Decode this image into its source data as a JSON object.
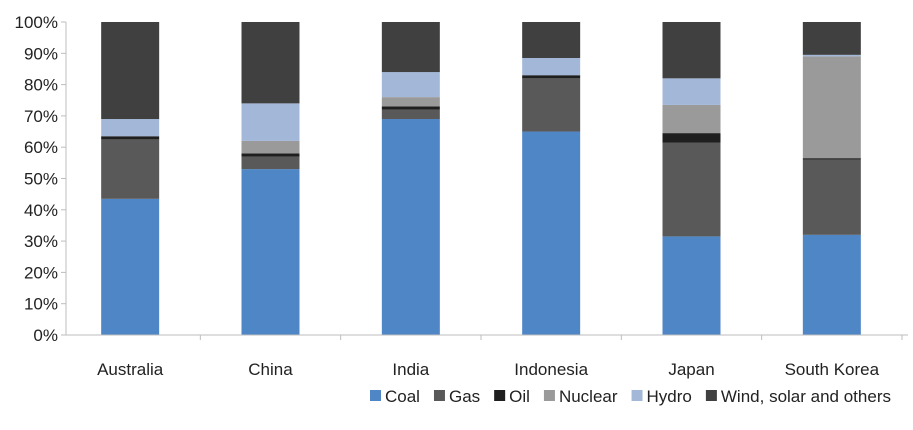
{
  "chart_data": {
    "type": "bar",
    "stacked": true,
    "categories": [
      "Australia",
      "China",
      "India",
      "Indonesia",
      "Japan",
      "South Korea"
    ],
    "series": [
      {
        "name": "Coal",
        "color": "#4f86c6",
        "values": [
          43.5,
          53,
          69,
          65,
          31.5,
          32
        ]
      },
      {
        "name": "Gas",
        "color": "#595959",
        "values": [
          19,
          4,
          3,
          17,
          30,
          24
        ]
      },
      {
        "name": "Oil",
        "color": "#1f1f1f",
        "values": [
          1,
          1,
          1,
          1,
          3,
          0.5
        ]
      },
      {
        "name": "Nuclear",
        "color": "#9a9a9a",
        "values": [
          0,
          4,
          3,
          0,
          9,
          32.5
        ]
      },
      {
        "name": "Hydro",
        "color": "#a3b8d8",
        "values": [
          5.5,
          12,
          8,
          5.5,
          8.5,
          0.5
        ]
      },
      {
        "name": "Wind, solar and others",
        "color": "#404040",
        "values": [
          31,
          26,
          16,
          11.5,
          18,
          10.5
        ]
      }
    ],
    "yticks": [
      "0%",
      "10%",
      "20%",
      "30%",
      "40%",
      "50%",
      "60%",
      "70%",
      "80%",
      "90%",
      "100%"
    ],
    "ylim": [
      0,
      100
    ],
    "legend": "bottom-right",
    "grid": false
  }
}
